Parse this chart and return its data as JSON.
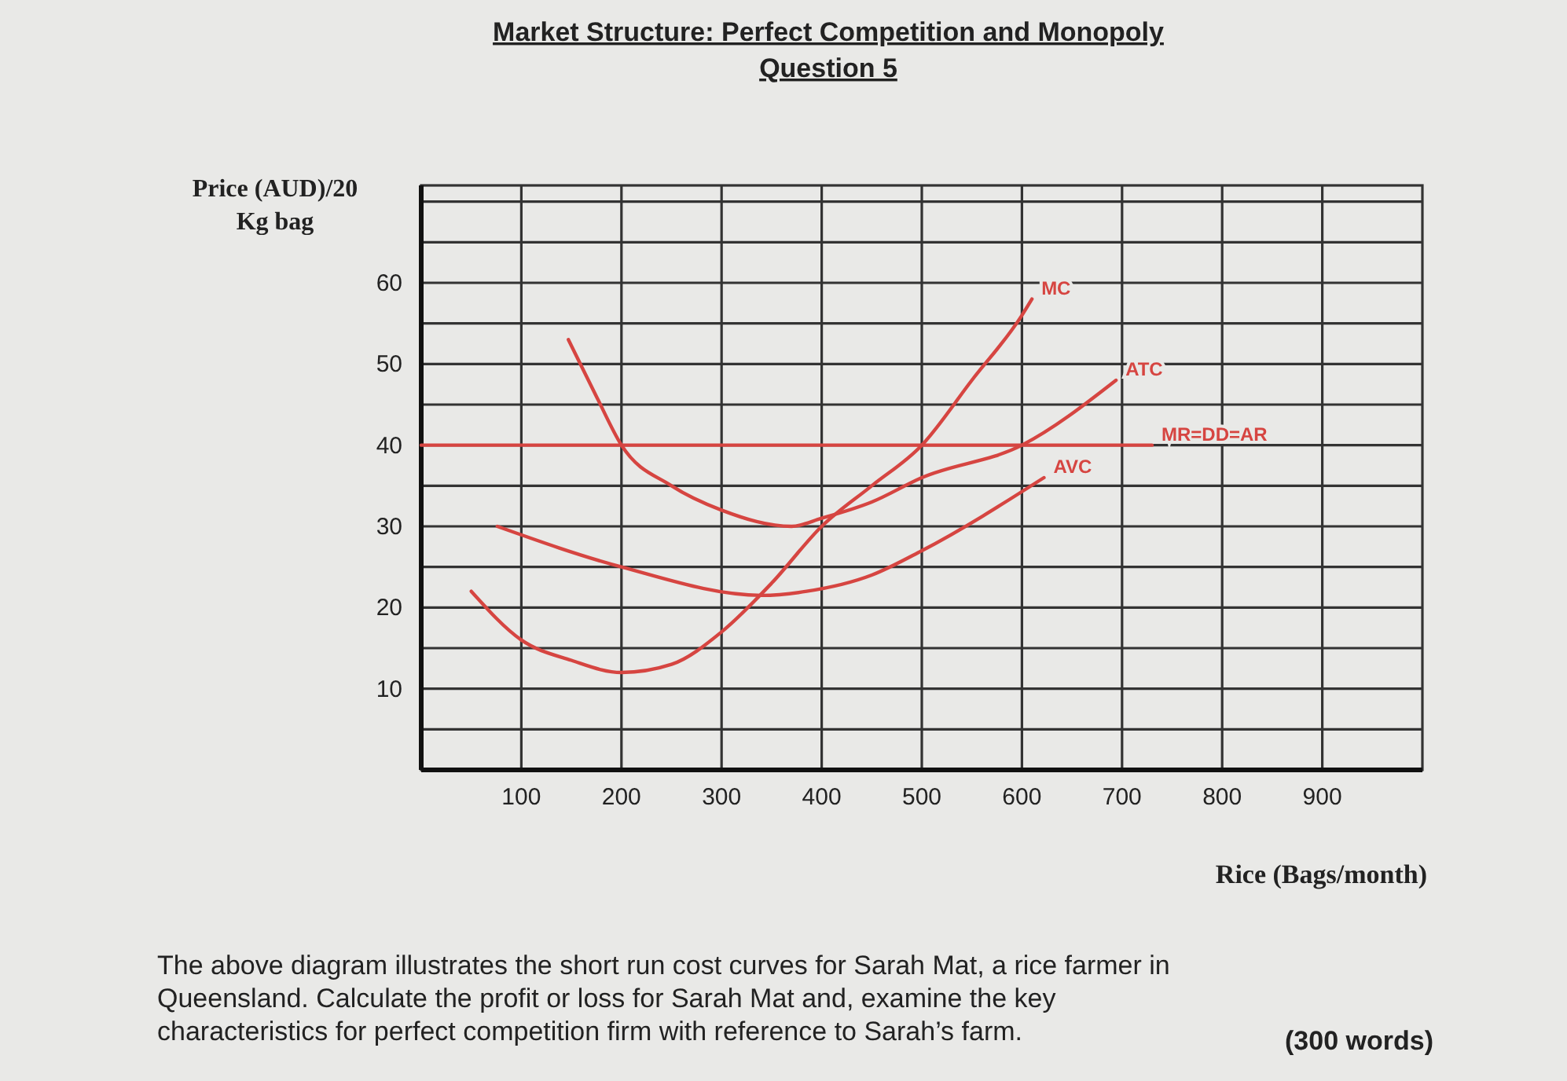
{
  "chart_data": {
    "type": "line",
    "title": "Market Structure: Perfect Competition and Monopoly",
    "subtitle": "Question 5",
    "xlabel": "Rice (Bags/month)",
    "ylabel": "Price (AUD)/20 Kg bag",
    "xlim": [
      0,
      1000
    ],
    "xticks": [
      100,
      200,
      300,
      400,
      500,
      600,
      700,
      800,
      900
    ],
    "ylim": [
      0,
      72
    ],
    "yticks": [
      {
        "value": 5,
        "label": null
      },
      10,
      {
        "value": 15,
        "label": null
      },
      20,
      {
        "value": 25,
        "label": null
      },
      30,
      {
        "value": 35,
        "label": null
      },
      40,
      {
        "value": 45,
        "label": null
      },
      50,
      {
        "value": 55,
        "label": null
      },
      60,
      {
        "value": 65,
        "label": null
      },
      {
        "value": 70,
        "label": null
      }
    ],
    "grid": true,
    "legend": false,
    "marker": "none",
    "line_style": "solid",
    "series": [
      {
        "name": "MC",
        "color": "#d64541",
        "x": [
          50,
          100,
          150,
          200,
          250,
          300,
          350,
          400,
          450,
          500,
          550,
          600,
          610
        ],
        "values": [
          22,
          16,
          13.5,
          12,
          13,
          17,
          23,
          30,
          35,
          40,
          48,
          56,
          58
        ]
      },
      {
        "name": "ATC",
        "color": "#d64541",
        "x": [
          147,
          175,
          200,
          250,
          300,
          370,
          400,
          450,
          500,
          600,
          694
        ],
        "values": [
          53,
          46,
          40,
          35,
          32,
          30,
          31,
          33,
          36,
          40,
          48
        ]
      },
      {
        "name": "AVC",
        "color": "#d64541",
        "x": [
          76,
          200,
          340,
          385,
          450,
          500,
          622
        ],
        "values": [
          30,
          25,
          21.5,
          22,
          24,
          27,
          36
        ]
      },
      {
        "name": "MR=DD=AR",
        "color": "#d64541",
        "x": [
          0,
          730
        ],
        "values": [
          40,
          40
        ]
      }
    ],
    "annotations": [
      "The above diagram illustrates the short run cost curves for Sarah Mat, a rice farmer in Queensland. Calculate the profit or loss for Sarah Mat and, examine the key characteristics for perfect competition firm with reference to Sarah’s farm.",
      "(300 words)"
    ]
  }
}
